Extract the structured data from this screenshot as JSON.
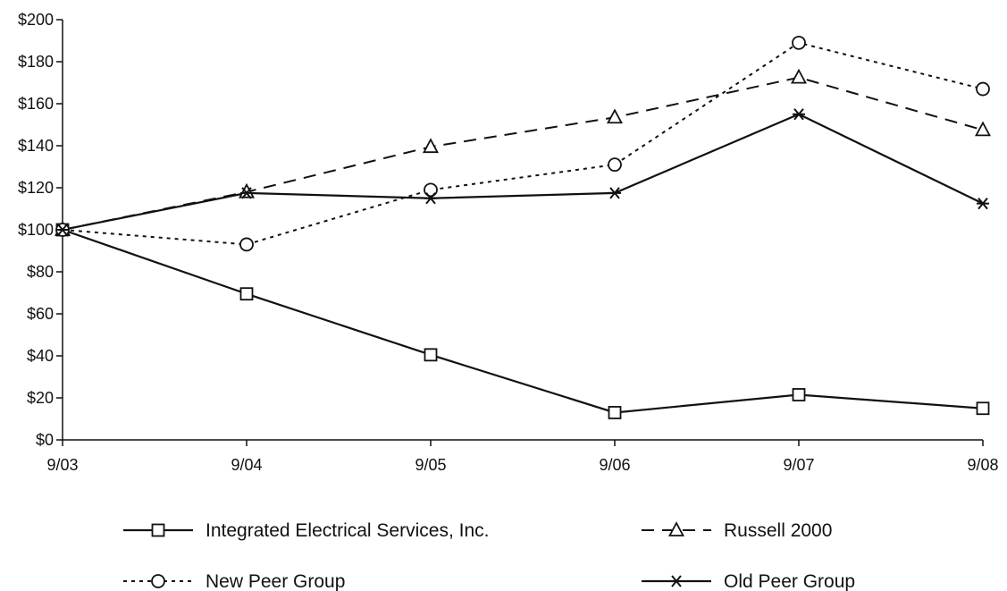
{
  "chart_data": {
    "type": "line",
    "categories": [
      "9/03",
      "9/04",
      "9/05",
      "9/06",
      "9/07",
      "9/08"
    ],
    "ylim": [
      0,
      200
    ],
    "yticks": [
      0,
      20,
      40,
      60,
      80,
      100,
      120,
      140,
      160,
      180,
      200
    ],
    "ytick_labels": [
      "$0",
      "$20",
      "$40",
      "$60",
      "$80",
      "$100",
      "$120",
      "$140",
      "$160",
      "$180",
      "$200"
    ],
    "grid": false,
    "legend_position": "bottom",
    "series": [
      {
        "name": "Integrated Electrical Services, Inc.",
        "marker": "square",
        "dash": "solid",
        "color": "#111111",
        "values": [
          100,
          69.5,
          40.5,
          13,
          21.5,
          15
        ]
      },
      {
        "name": "Russell 2000",
        "marker": "triangle",
        "dash": "dashed",
        "color": "#111111",
        "values": [
          100,
          118,
          139.5,
          153.5,
          172.5,
          147.5
        ]
      },
      {
        "name": "New Peer Group",
        "marker": "circle",
        "dash": "dotted",
        "color": "#111111",
        "values": [
          100,
          93,
          119,
          131,
          189,
          167
        ]
      },
      {
        "name": "Old Peer Group",
        "marker": "asterisk",
        "dash": "solid",
        "color": "#111111",
        "values": [
          100,
          117.5,
          115,
          117.5,
          155,
          112.5
        ]
      }
    ]
  }
}
